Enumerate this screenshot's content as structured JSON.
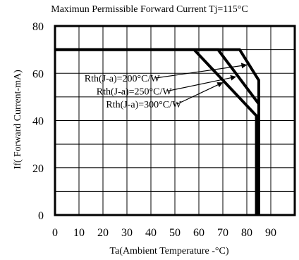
{
  "chart_data": {
    "type": "line",
    "title": "Maximun Permissible Forward Current Tj=115°C",
    "xlabel": "Ta(Ambient Temperature -°C)",
    "ylabel": "If( Forward Current-mA)",
    "xlim": [
      0,
      100
    ],
    "ylim": [
      0,
      80
    ],
    "xticks": [
      0,
      10,
      20,
      30,
      40,
      50,
      60,
      70,
      80,
      90
    ],
    "yticks": [
      0,
      20,
      40,
      60,
      80
    ],
    "grid": true,
    "series": [
      {
        "name": "Rth(J-a)=200°C/W",
        "x": [
          0,
          77,
          85,
          85
        ],
        "y": [
          70,
          70,
          57,
          0
        ]
      },
      {
        "name": "Rth(J-a)=250°C/W",
        "x": [
          0,
          68,
          85,
          85
        ],
        "y": [
          70,
          70,
          47,
          0
        ]
      },
      {
        "name": "Rth(J-a)=300°C/W",
        "x": [
          0,
          58,
          84,
          84
        ],
        "y": [
          70,
          70,
          42,
          0
        ]
      }
    ]
  }
}
